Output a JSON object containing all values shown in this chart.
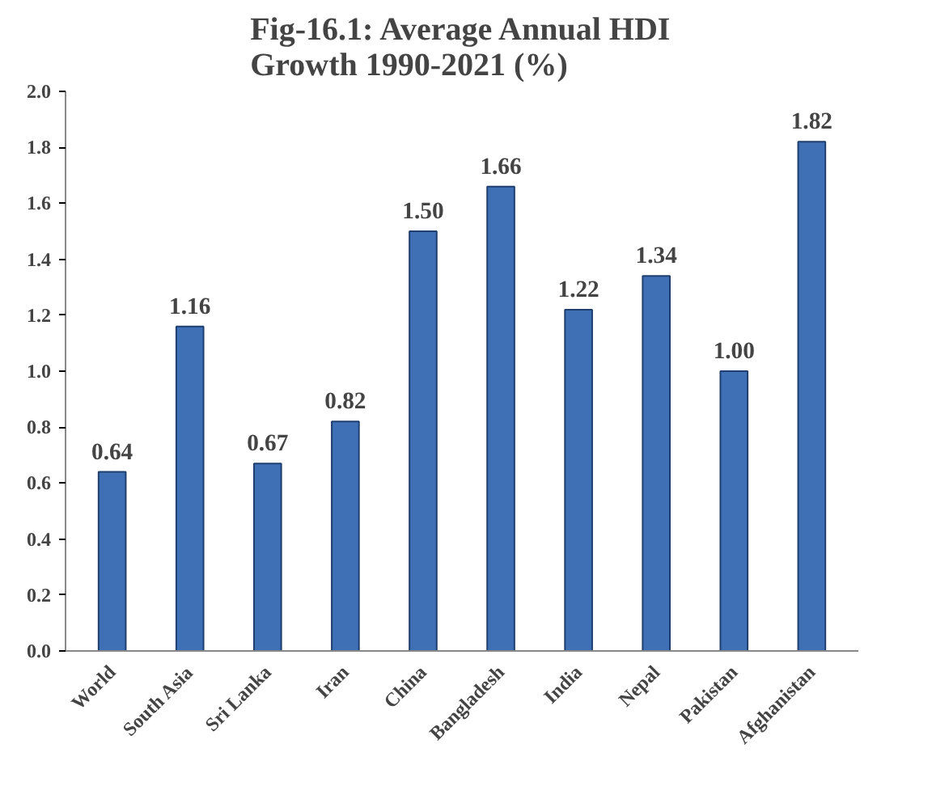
{
  "chart_data": {
    "type": "bar",
    "title": "Fig-16.1: Average Annual HDI\nGrowth 1990-2021 (%)",
    "categories": [
      "World",
      "South Asia",
      "Sri Lanka",
      "Iran",
      "China",
      "Bangladesh",
      "India",
      "Nepal",
      "Pakistan",
      "Afghanistan"
    ],
    "values": [
      0.64,
      1.16,
      0.67,
      0.82,
      1.5,
      1.66,
      1.22,
      1.34,
      1.0,
      1.82
    ],
    "value_labels": [
      "0.64",
      "1.16",
      "0.67",
      "0.82",
      "1.50",
      "1.66",
      "1.22",
      "1.34",
      "1.00",
      "1.82"
    ],
    "color": "#3f6fb5",
    "ylim": [
      0,
      2.0
    ],
    "yticks": [
      {
        "value": 0,
        "label": "0.0"
      },
      {
        "value": 0.2,
        "label": "0.2"
      },
      {
        "value": 0.4,
        "label": "0.4"
      },
      {
        "value": 0.6,
        "label": "0.6"
      },
      {
        "value": 0.8,
        "label": "0.8"
      },
      {
        "value": 1.0,
        "label": "1.0"
      },
      {
        "value": 1.2,
        "label": "1.2"
      },
      {
        "value": 1.4,
        "label": "1.4"
      },
      {
        "value": 1.6,
        "label": "1.6"
      },
      {
        "value": 1.8,
        "label": "1.8"
      },
      {
        "value": 2.0,
        "label": "2.0"
      }
    ],
    "grid": false
  }
}
